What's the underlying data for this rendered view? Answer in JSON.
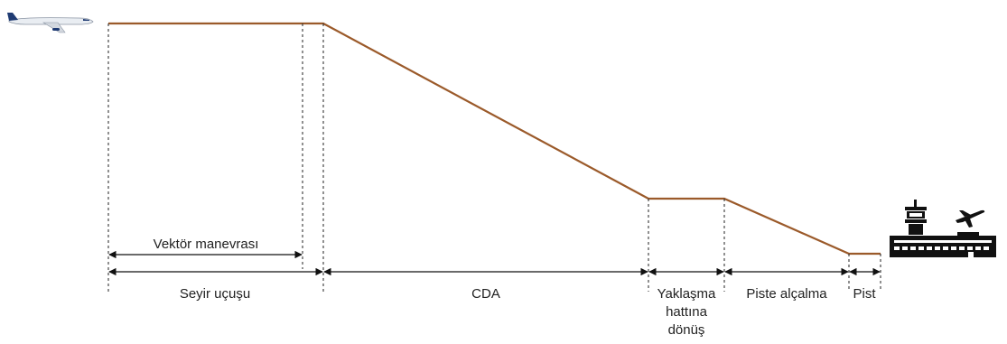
{
  "colors": {
    "profile": "#9b5a2a",
    "ink": "#222222"
  },
  "icons": {
    "aircraft": "aircraft-icon",
    "airport": "airport-icon"
  },
  "segments": {
    "vector_maneuver": "Vektör manevrası",
    "cruise": "Seyir uçuşu",
    "cda": "CDA",
    "approach_turn_1": "Yaklaşma",
    "approach_turn_2": "hattına",
    "approach_turn_3": "dönüş",
    "runway_descent": "Piste alçalma",
    "runway": "Pist"
  }
}
